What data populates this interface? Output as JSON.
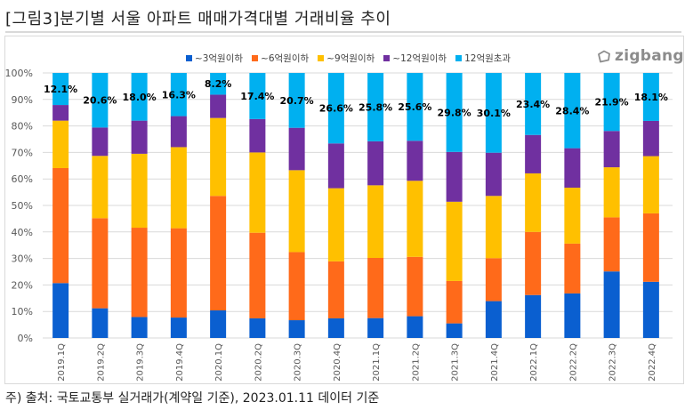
{
  "title": "[그림3]분기별 서울 아파트 매매가격대별 거래비율 추이",
  "footer": "주) 출처: 국토교통부 실거래가(계약일 기준), 2023.01.11 데이터 기준",
  "logo": {
    "icon": "zigbang-house-icon",
    "text": "zigbang"
  },
  "chart_data": {
    "type": "bar",
    "stacked": true,
    "percent_stacked": true,
    "title": "",
    "xlabel": "",
    "ylabel": "",
    "ylim": [
      0,
      100
    ],
    "yticks": [
      "0%",
      "10%",
      "20%",
      "30%",
      "40%",
      "50%",
      "60%",
      "70%",
      "80%",
      "90%",
      "100%"
    ],
    "grid": true,
    "legend_position": "top-center",
    "categories": [
      "2019.1Q",
      "2019.2Q",
      "2019.3Q",
      "2019.4Q",
      "2020.1Q",
      "2020.2Q",
      "2020.3Q",
      "2020.4Q",
      "2021.1Q",
      "2021.2Q",
      "2021.3Q",
      "2021.4Q",
      "2022.1Q",
      "2022.2Q",
      "2022.3Q",
      "2022.4Q"
    ],
    "series": [
      {
        "name": "~3억원이하",
        "color": "#0a5fd0",
        "values": [
          20.7,
          11.2,
          7.9,
          7.7,
          10.4,
          7.4,
          6.7,
          7.4,
          7.5,
          8.2,
          5.5,
          13.9,
          16.2,
          16.8,
          25.1,
          21.2
        ]
      },
      {
        "name": "~6억원이하",
        "color": "#ff6a1a",
        "values": [
          43.4,
          34.0,
          33.7,
          33.7,
          43.2,
          32.3,
          25.7,
          21.5,
          22.7,
          22.4,
          16.0,
          16.2,
          23.8,
          18.8,
          20.4,
          25.8
        ]
      },
      {
        "name": "~9억원이하",
        "color": "#ffc000",
        "values": [
          17.9,
          23.5,
          27.9,
          30.6,
          29.4,
          30.3,
          30.9,
          27.6,
          27.4,
          28.7,
          29.9,
          23.5,
          22.1,
          21.1,
          18.9,
          21.6
        ]
      },
      {
        "name": "~12억원이하",
        "color": "#7030a0",
        "values": [
          5.9,
          10.7,
          12.5,
          11.7,
          8.8,
          12.6,
          16.0,
          16.9,
          16.6,
          15.1,
          18.8,
          16.3,
          14.5,
          14.9,
          13.7,
          13.3
        ]
      },
      {
        "name": "12억원초과",
        "color": "#00b0f0",
        "values": [
          12.1,
          20.6,
          18.0,
          16.3,
          8.2,
          17.4,
          20.7,
          26.6,
          25.8,
          25.6,
          29.8,
          30.1,
          23.4,
          28.4,
          21.9,
          18.1
        ]
      }
    ],
    "data_labels": {
      "series": "12억원초과",
      "labels": [
        "12.1%",
        "20.6%",
        "18.0%",
        "16.3%",
        "8.2%",
        "17.4%",
        "20.7%",
        "26.6%",
        "25.8%",
        "25.6%",
        "29.8%",
        "30.1%",
        "23.4%",
        "28.4%",
        "21.9%",
        "18.1%"
      ]
    }
  }
}
